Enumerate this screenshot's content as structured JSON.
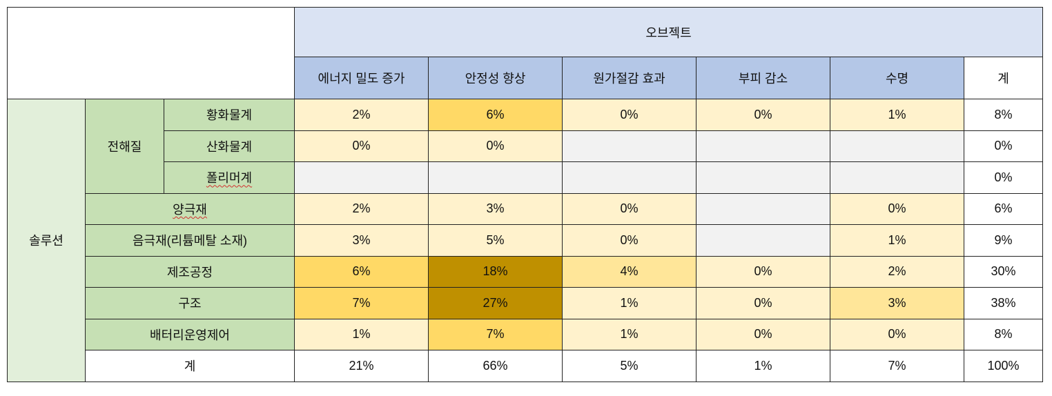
{
  "header": {
    "object_label": "오브젝트",
    "columns": [
      "에너지 밀도 증가",
      "안정성 향상",
      "원가절감 효과",
      "부피 감소",
      "수명",
      "계"
    ]
  },
  "rows": {
    "solution_label": "솔루션",
    "electrolyte_label": "전해질",
    "sulfide": {
      "label": "황화물계",
      "values": [
        "2%",
        "6%",
        "0%",
        "0%",
        "1%",
        "8%"
      ]
    },
    "oxide": {
      "label": "산화물계",
      "values": [
        "0%",
        "0%",
        "",
        "",
        "",
        "0%"
      ]
    },
    "polymer": {
      "label": "폴리머계",
      "values": [
        "",
        "",
        "",
        "",
        "",
        "0%"
      ]
    },
    "cathode": {
      "label": "양극재",
      "values": [
        "2%",
        "3%",
        "0%",
        "",
        "0%",
        "6%"
      ]
    },
    "anode": {
      "label": "음극재(리튬메탈 소재)",
      "values": [
        "3%",
        "5%",
        "0%",
        "",
        "1%",
        "9%"
      ]
    },
    "process": {
      "label": "제조공정",
      "values": [
        "6%",
        "18%",
        "4%",
        "0%",
        "2%",
        "30%"
      ]
    },
    "structure": {
      "label": "구조",
      "values": [
        "7%",
        "27%",
        "1%",
        "0%",
        "3%",
        "38%"
      ]
    },
    "bms": {
      "label": "배터리운영제어",
      "values": [
        "1%",
        "7%",
        "1%",
        "0%",
        "0%",
        "8%"
      ]
    },
    "total": {
      "label": "계",
      "values": [
        "21%",
        "66%",
        "5%",
        "1%",
        "7%",
        "100%"
      ]
    }
  },
  "colors": {
    "header_light_blue": "#dae3f3",
    "header_blue": "#b4c7e7",
    "solution_green": "#e2efda",
    "label_green": "#c6e0b4",
    "heat_lowest": "#fff2cc",
    "heat_low": "#ffe699",
    "heat_mid": "#ffd966",
    "heat_high": "#bf9000",
    "empty_gray": "#f2f2f2"
  }
}
